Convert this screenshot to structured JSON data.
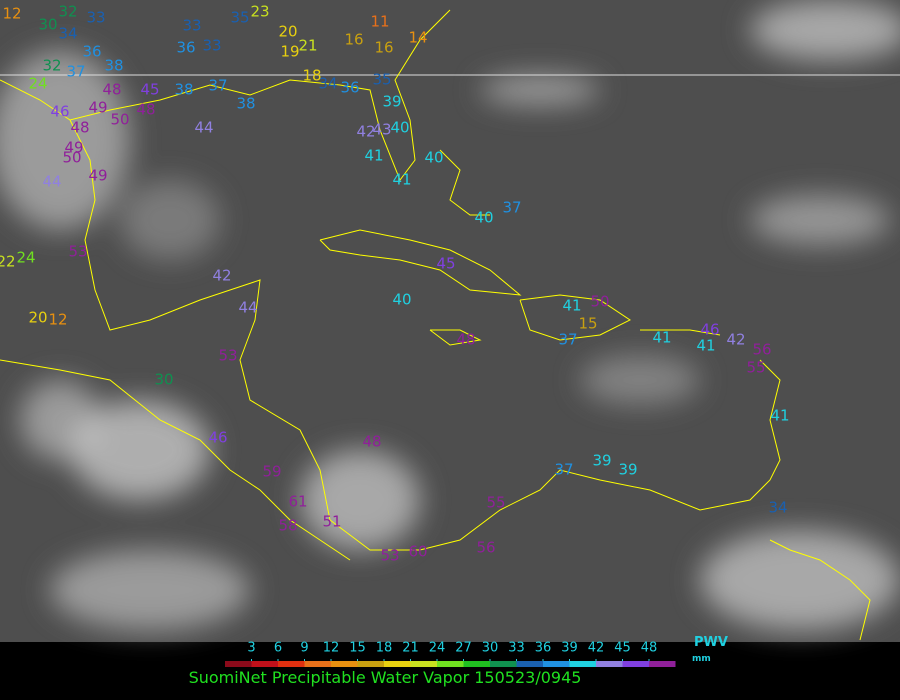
{
  "title": "SuomiNet Precipitable Water Vapor 150523/0945",
  "legend": {
    "unit": "PWV",
    "unit_sub": "mm",
    "ticks": [
      3,
      6,
      9,
      12,
      15,
      18,
      21,
      24,
      27,
      30,
      33,
      36,
      39,
      42,
      45,
      48
    ],
    "colors": [
      "#8b0a1a",
      "#c0101a",
      "#e03010",
      "#e8701a",
      "#e89010",
      "#c8a010",
      "#e8d010",
      "#c8e020",
      "#70e020",
      "#20c020",
      "#109050",
      "#1a60b0",
      "#2090e0",
      "#20d0e0",
      "#9080e0",
      "#8040e0",
      "#90209a"
    ]
  },
  "stations": [
    12,
    30,
    32,
    34,
    33,
    36,
    32,
    37,
    38,
    24,
    46,
    49,
    48,
    50,
    49,
    50,
    44,
    49,
    48,
    45,
    48,
    44,
    53,
    24,
    22,
    20,
    12,
    42,
    44,
    53,
    30,
    46,
    59,
    61,
    58,
    51,
    53,
    60,
    56,
    55,
    48,
    37,
    39,
    39,
    34,
    41,
    55,
    56,
    42,
    41,
    46,
    41,
    48,
    40,
    41,
    50,
    15,
    37,
    45,
    40,
    37,
    40,
    40,
    39,
    35,
    36,
    42,
    43,
    41,
    41,
    16,
    16,
    11,
    14,
    21,
    19,
    20,
    23,
    33,
    35,
    33,
    36,
    38,
    37,
    38,
    34,
    18
  ]
}
